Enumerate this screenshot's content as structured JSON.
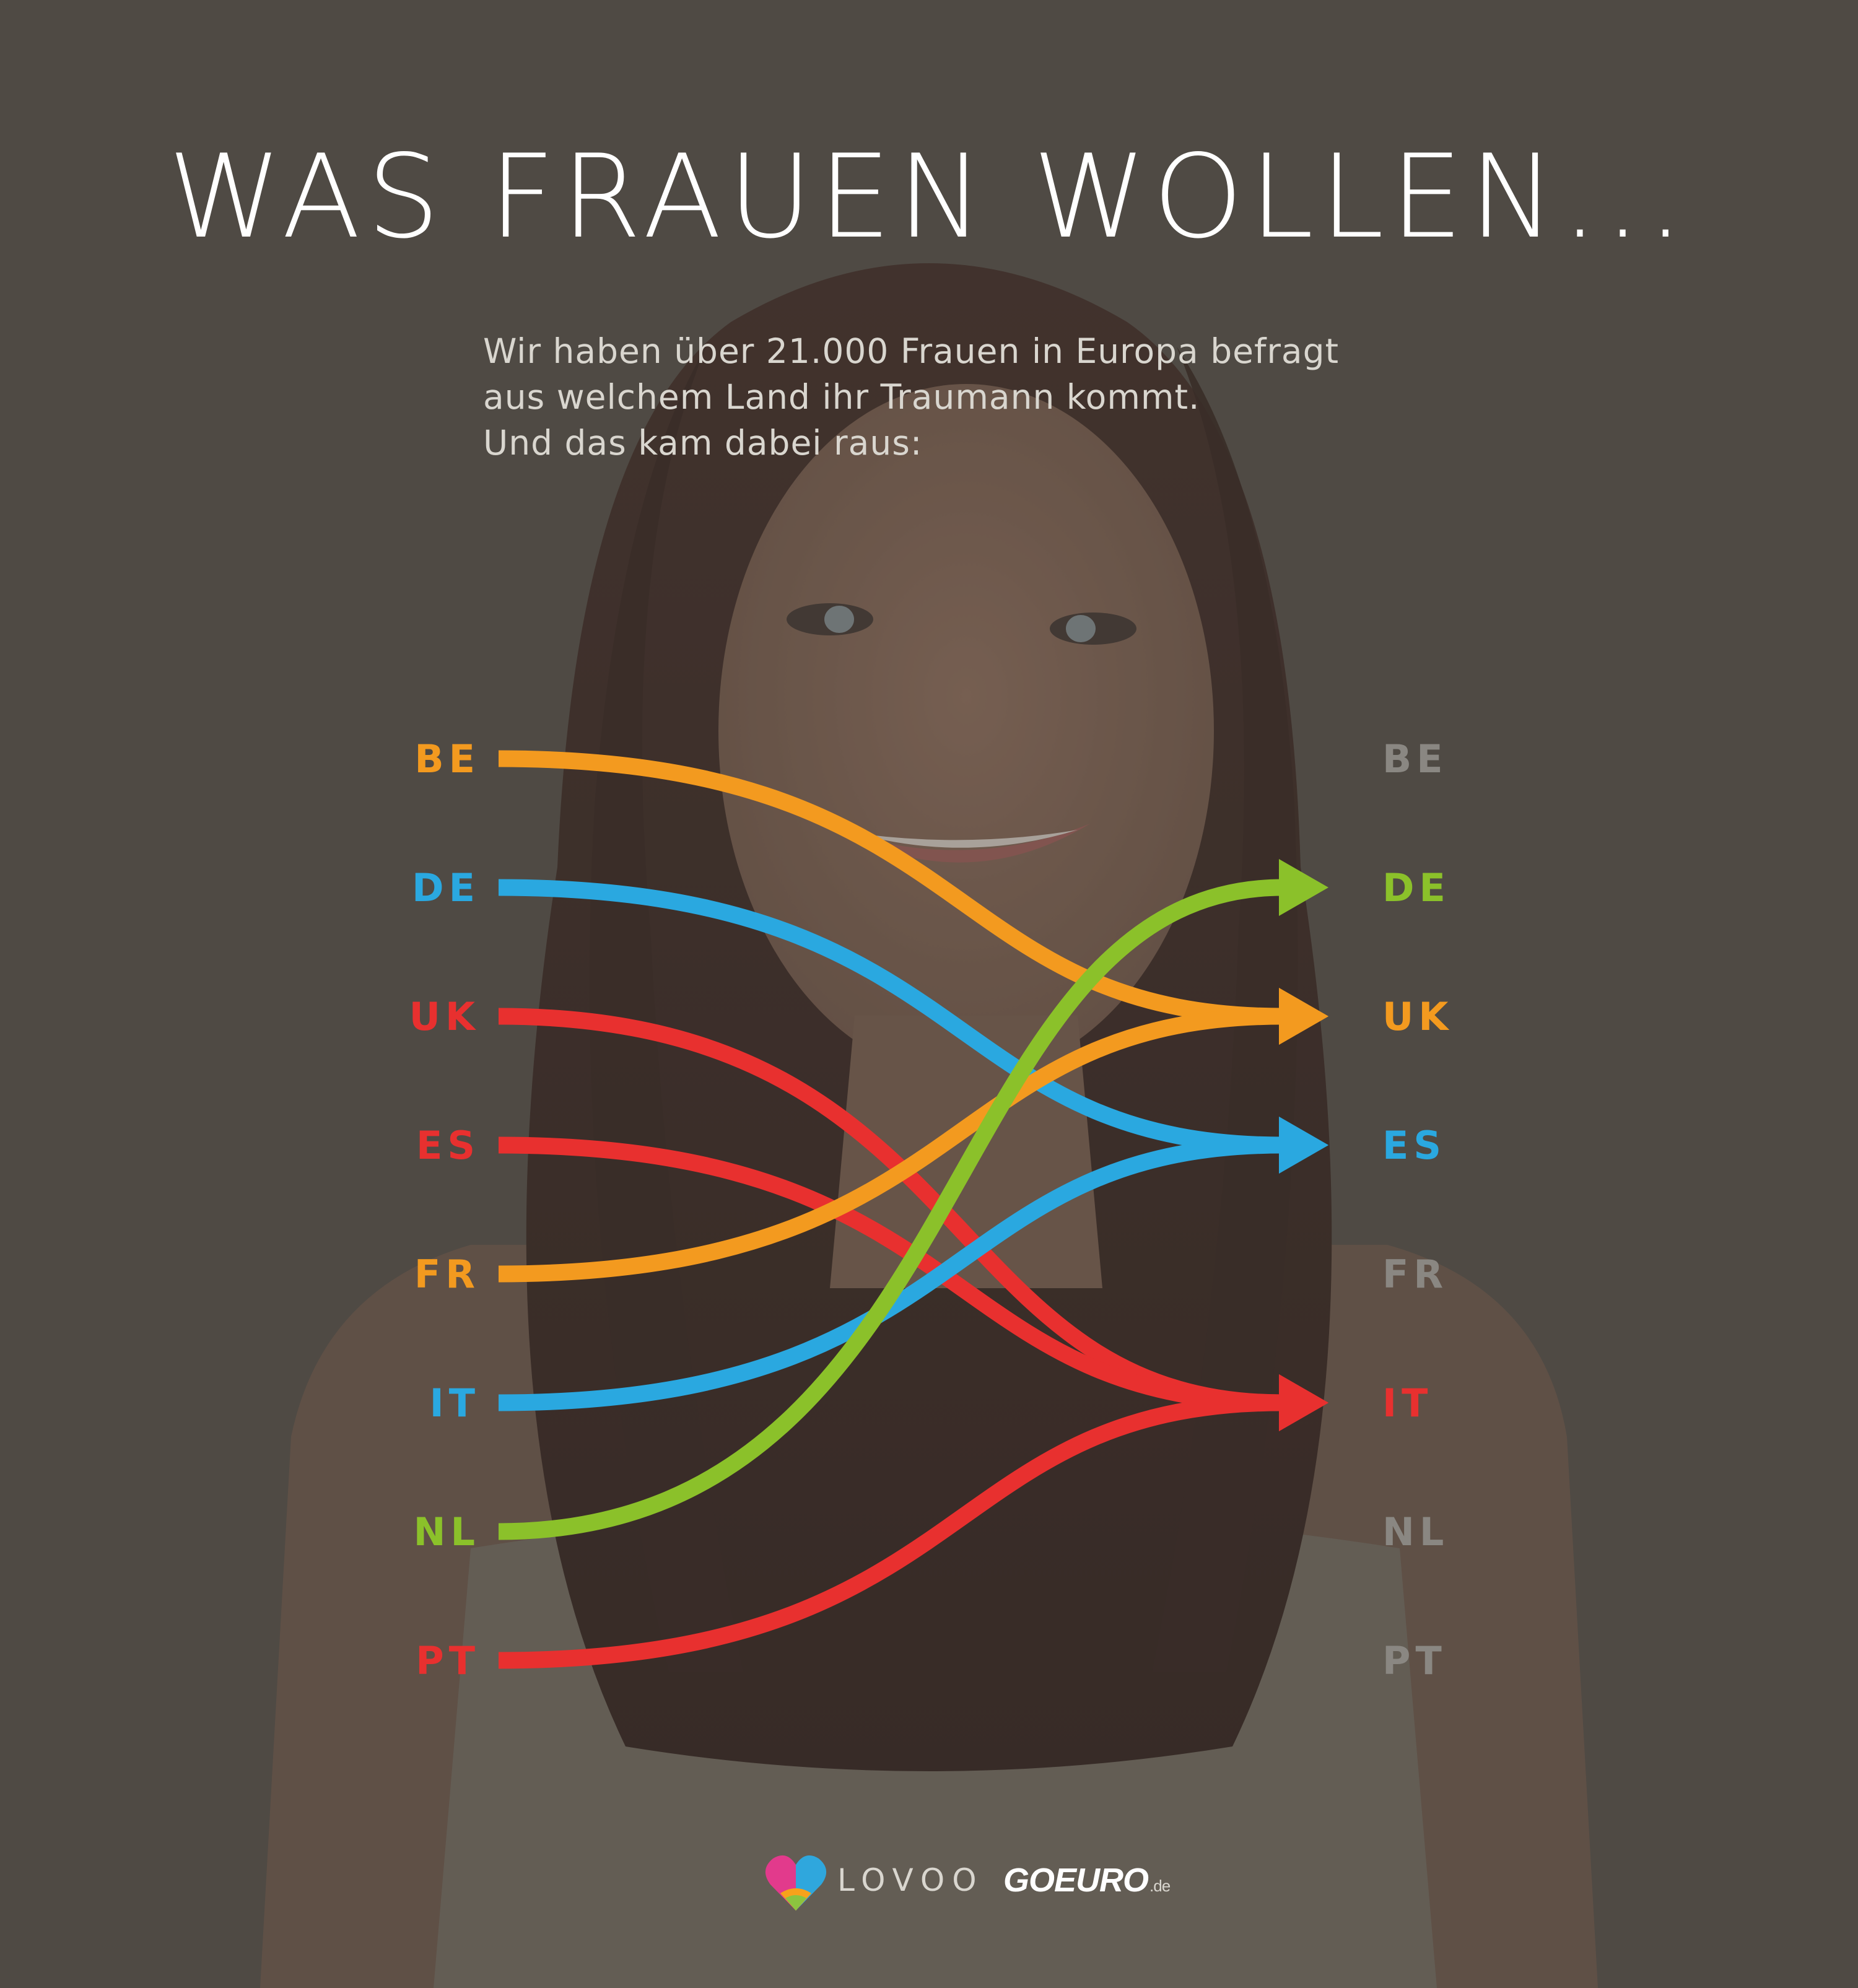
{
  "title": "WAS FRAUEN WOLLEN...",
  "subtitle_lines": [
    "Wir haben über 21.000 Frauen in Europa befragt",
    "aus welchem Land ihr Traumann kommt.",
    "Und das kam dabei raus:"
  ],
  "countries": [
    "BE",
    "DE",
    "UK",
    "ES",
    "FR",
    "IT",
    "NL",
    "PT"
  ],
  "colors": {
    "orange": "#f39a1f",
    "blue": "#2aa8e0",
    "red": "#e8302f",
    "green": "#8bc12a",
    "inactive": "#8a8782"
  },
  "left_colors": [
    "orange",
    "blue",
    "red",
    "red",
    "orange",
    "blue",
    "green",
    "red"
  ],
  "right_colors": [
    "inactive",
    "green",
    "orange",
    "blue",
    "inactive",
    "red",
    "inactive",
    "inactive"
  ],
  "links": [
    {
      "from": "BE",
      "to": "UK",
      "color": "orange"
    },
    {
      "from": "DE",
      "to": "ES",
      "color": "blue"
    },
    {
      "from": "UK",
      "to": "IT",
      "color": "red"
    },
    {
      "from": "ES",
      "to": "IT",
      "color": "red"
    },
    {
      "from": "FR",
      "to": "UK",
      "color": "orange"
    },
    {
      "from": "IT",
      "to": "ES",
      "color": "blue"
    },
    {
      "from": "NL",
      "to": "DE",
      "color": "green"
    },
    {
      "from": "PT",
      "to": "IT",
      "color": "red"
    }
  ],
  "logos": {
    "lovoo": "LOVOO",
    "goeuro": "GOEURO",
    "goeuro_tld": ".de"
  }
}
